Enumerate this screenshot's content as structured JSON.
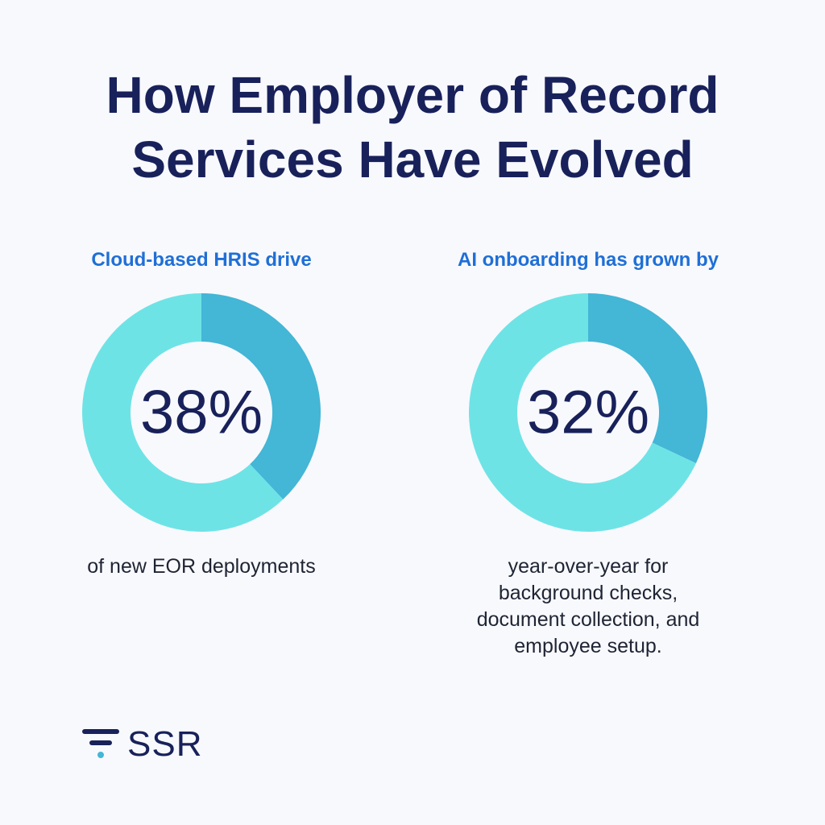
{
  "title": {
    "line1": "How Employer of Record",
    "line2": "Services Have Evolved"
  },
  "colors": {
    "highlight": "#44b6d6",
    "remainder": "#6ee3e6",
    "heading": "#1f6fd6",
    "navy": "#18215a"
  },
  "chart_data": [
    {
      "type": "pie",
      "variant": "donut",
      "title": "Cloud-based HRIS drive",
      "value_label": "38%",
      "value": 38,
      "caption": "of new EOR deployments",
      "slices": [
        {
          "value": 38,
          "color": "#44b6d6"
        },
        {
          "value": 62,
          "color": "#6ee3e6"
        }
      ]
    },
    {
      "type": "pie",
      "variant": "donut",
      "title": "AI onboarding has grown by",
      "value_label": "32%",
      "value": 32,
      "caption": "year-over-year for background checks, document collection, and employee setup.",
      "caption_lines": [
        "year-over-year for",
        "background checks,",
        "document collection, and",
        "employee setup."
      ],
      "slices": [
        {
          "value": 32,
          "color": "#44b6d6"
        },
        {
          "value": 68,
          "color": "#6ee3e6"
        }
      ]
    }
  ],
  "logo": {
    "text": "SSR",
    "icon": "stacked-lines-logo-icon"
  }
}
